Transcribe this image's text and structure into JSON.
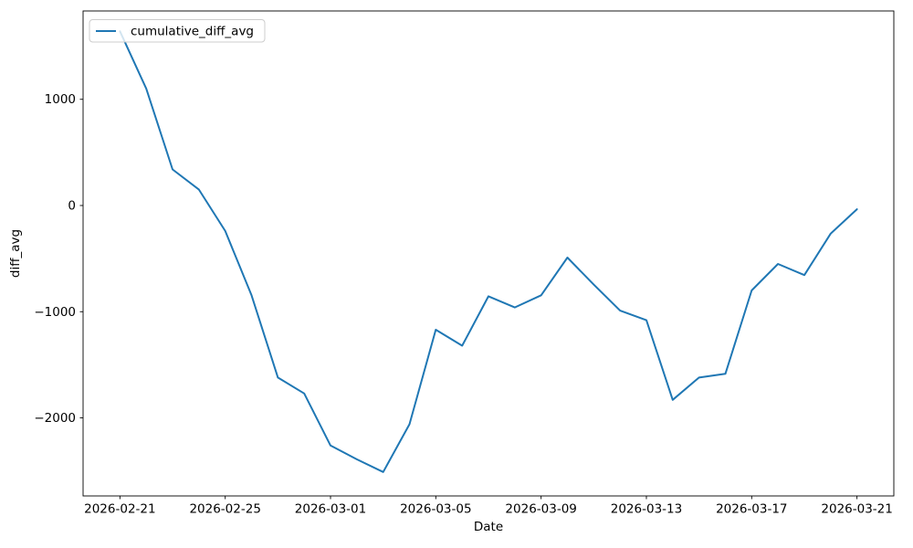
{
  "chart_data": {
    "type": "line",
    "title": "",
    "xlabel": "Date",
    "ylabel": "diff_avg",
    "legend_label": "cumulative_diff_avg",
    "legend_position": "upper left",
    "line_color": "#1f77b4",
    "grid": false,
    "x": [
      "2026-02-21",
      "2026-02-22",
      "2026-02-23",
      "2026-02-24",
      "2026-02-25",
      "2026-02-26",
      "2026-02-27",
      "2026-02-28",
      "2026-03-01",
      "2026-03-02",
      "2026-03-03",
      "2026-03-04",
      "2026-03-05",
      "2026-03-06",
      "2026-03-07",
      "2026-03-08",
      "2026-03-09",
      "2026-03-10",
      "2026-03-11",
      "2026-03-12",
      "2026-03-13",
      "2026-03-14",
      "2026-03-15",
      "2026-03-16",
      "2026-03-17",
      "2026-03-18",
      "2026-03-19",
      "2026-03-20",
      "2026-03-21"
    ],
    "y": [
      1640,
      1100,
      340,
      150,
      -240,
      -845,
      -1620,
      -1770,
      -2260,
      -2390,
      -2510,
      -2060,
      -1170,
      -1320,
      -855,
      -960,
      -845,
      -490,
      -745,
      -990,
      -1080,
      -1830,
      -1620,
      -1585,
      -800,
      -550,
      -655,
      -265,
      -35
    ],
    "x_ticks": [
      "2026-02-21",
      "2026-02-25",
      "2026-03-01",
      "2026-03-05",
      "2026-03-09",
      "2026-03-13",
      "2026-03-17",
      "2026-03-21"
    ],
    "y_ticks": [
      1000,
      0,
      -1000,
      -2000
    ],
    "ylim": [
      -2735,
      1832
    ],
    "xlim_day_index": [
      -1.4,
      29.4
    ]
  },
  "colors": {
    "line": "#1f77b4",
    "spine": "#000000",
    "legend_border": "#cccccc",
    "background": "#ffffff"
  }
}
